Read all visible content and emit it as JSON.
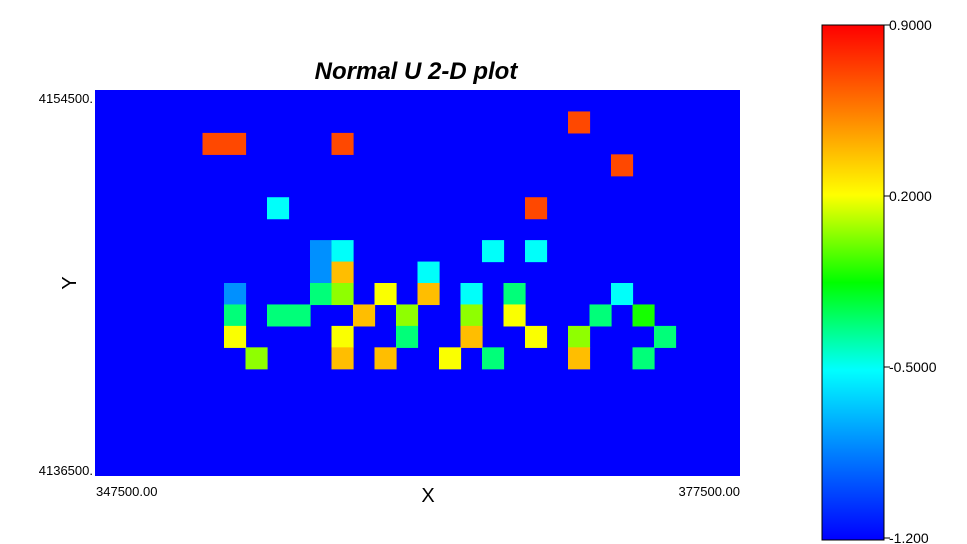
{
  "chart_data": {
    "type": "heatmap",
    "title": "Normal U 2-D plot",
    "xlabel": "X",
    "ylabel": "Y",
    "x_tick_labels": [
      "347500.00",
      "377500.00"
    ],
    "y_tick_labels": [
      "4154500.",
      "4136500."
    ],
    "xlim": [
      347500,
      377500
    ],
    "ylim": [
      4136500,
      4154500
    ],
    "colorbar": {
      "tick_labels": [
        "0.9000",
        "0.2000",
        "-0.5000",
        "-1.200"
      ],
      "range": [
        -1.2,
        0.9
      ],
      "colormap": "rainbow (blue to red)"
    },
    "background_value": -1.2,
    "grid": {
      "cols": 30,
      "rows": 18,
      "row_order": "top-to-bottom",
      "cells": [
        "..............................",
        "......................@.......",
        ".....@@....@..................",
        "........................@.....",
        "..............................",
        "........4...........@.........",
        "..............................",
        "..........24......4.4.........",
        "..........29...4..............",
        "......2...57.8.9.4.5....4.....",
        "......5.55..9.7..7.8...5.6....",
        "......8....8..5..9..8.7...5...",
        ".......7...9.9..8.5...9..5....",
        "..............................",
        "..............................",
        "..............................",
        "..............................",
        ".............................."
      ]
    }
  }
}
